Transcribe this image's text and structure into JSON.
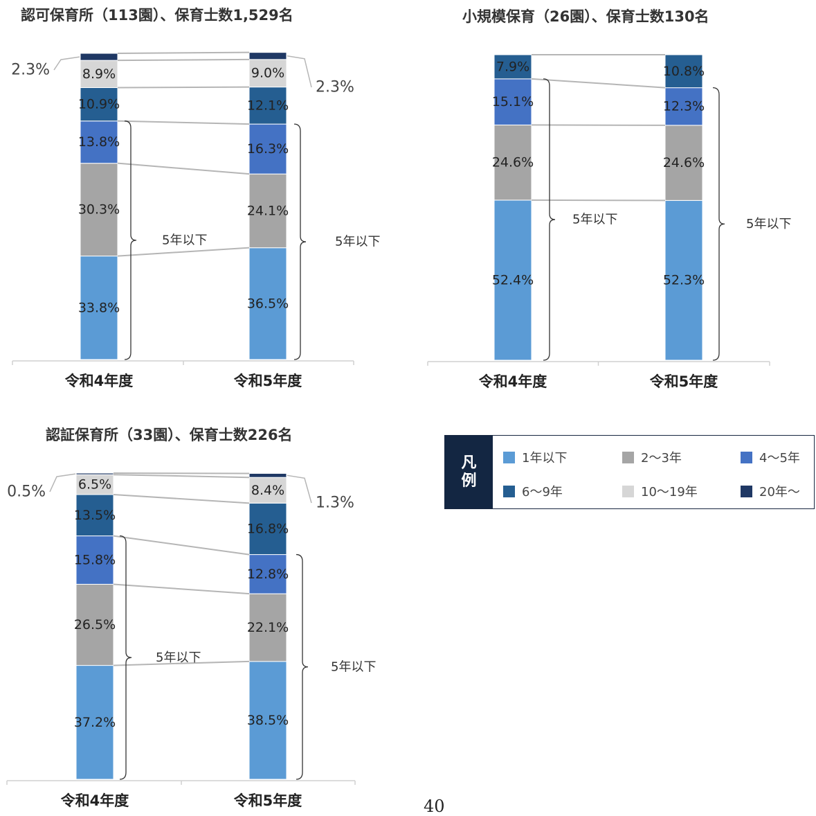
{
  "colors": {
    "1年以下": "#5b9bd5",
    "2〜3年": "#a5a5a5",
    "4〜5年": "#4472c4",
    "6〜9年": "#255e91",
    "10〜19年": "#d6d6d6",
    "20年〜": "#1f3864",
    "connector": "#b5b5b5",
    "axis": "#d0d0d0"
  },
  "legend": {
    "title": "凡例",
    "title_lines": [
      "凡",
      "例"
    ],
    "items": [
      "1年以下",
      "2〜3年",
      "4〜5年",
      "6〜9年",
      "10〜19年",
      "20年〜"
    ]
  },
  "page_number": "40",
  "chart_data": [
    {
      "type": "bar",
      "stacked": true,
      "title": "認可保育所（113園）、保育士数1,529名",
      "categories": [
        "令和4年度",
        "令和5年度"
      ],
      "series": [
        {
          "name": "1年以下",
          "values": [
            33.8,
            36.5
          ]
        },
        {
          "name": "2〜3年",
          "values": [
            30.3,
            24.1
          ]
        },
        {
          "name": "4〜5年",
          "values": [
            13.8,
            16.3
          ]
        },
        {
          "name": "6〜9年",
          "values": [
            10.9,
            12.1
          ]
        },
        {
          "name": "10〜19年",
          "values": [
            8.9,
            9.0
          ]
        },
        {
          "name": "20年〜",
          "values": [
            2.3,
            2.3
          ]
        }
      ],
      "data_labels": [
        [
          "33.8%",
          "30.3%",
          "13.8%",
          "10.9%",
          "8.9%",
          "2.3%"
        ],
        [
          "36.5%",
          "24.1%",
          "16.3%",
          "12.1%",
          "9.0%",
          "2.3%"
        ]
      ],
      "brace_label": "5年以下",
      "ylim": [
        0,
        100
      ]
    },
    {
      "type": "bar",
      "stacked": true,
      "title": "小規模保育（26園）、保育士数130名",
      "categories": [
        "令和4年度",
        "令和5年度"
      ],
      "series": [
        {
          "name": "1年以下",
          "values": [
            52.4,
            52.3
          ]
        },
        {
          "name": "2〜3年",
          "values": [
            24.6,
            24.6
          ]
        },
        {
          "name": "4〜5年",
          "values": [
            15.1,
            12.3
          ]
        },
        {
          "name": "6〜9年",
          "values": [
            7.9,
            10.8
          ]
        },
        {
          "name": "10〜19年",
          "values": [
            0,
            0
          ]
        },
        {
          "name": "20年〜",
          "values": [
            0,
            0
          ]
        }
      ],
      "data_labels": [
        [
          "52.4%",
          "24.6%",
          "15.1%",
          "7.9%",
          "",
          ""
        ],
        [
          "52.3%",
          "24.6%",
          "12.3%",
          "10.8%",
          "",
          ""
        ]
      ],
      "brace_label": "5年以下",
      "ylim": [
        0,
        100
      ]
    },
    {
      "type": "bar",
      "stacked": true,
      "title": "認証保育所（33園）、保育士数226名",
      "categories": [
        "令和4年度",
        "令和5年度"
      ],
      "series": [
        {
          "name": "1年以下",
          "values": [
            37.2,
            38.5
          ]
        },
        {
          "name": "2〜3年",
          "values": [
            26.5,
            22.1
          ]
        },
        {
          "name": "4〜5年",
          "values": [
            15.8,
            12.8
          ]
        },
        {
          "name": "6〜9年",
          "values": [
            13.5,
            16.8
          ]
        },
        {
          "name": "10〜19年",
          "values": [
            6.5,
            8.4
          ]
        },
        {
          "name": "20年〜",
          "values": [
            0.5,
            1.3
          ]
        }
      ],
      "data_labels": [
        [
          "37.2%",
          "26.5%",
          "15.8%",
          "13.5%",
          "6.5%",
          "0.5%"
        ],
        [
          "38.5%",
          "22.1%",
          "12.8%",
          "16.8%",
          "8.4%",
          "1.3%"
        ]
      ],
      "brace_label": "5年以下",
      "ylim": [
        0,
        100
      ]
    }
  ]
}
